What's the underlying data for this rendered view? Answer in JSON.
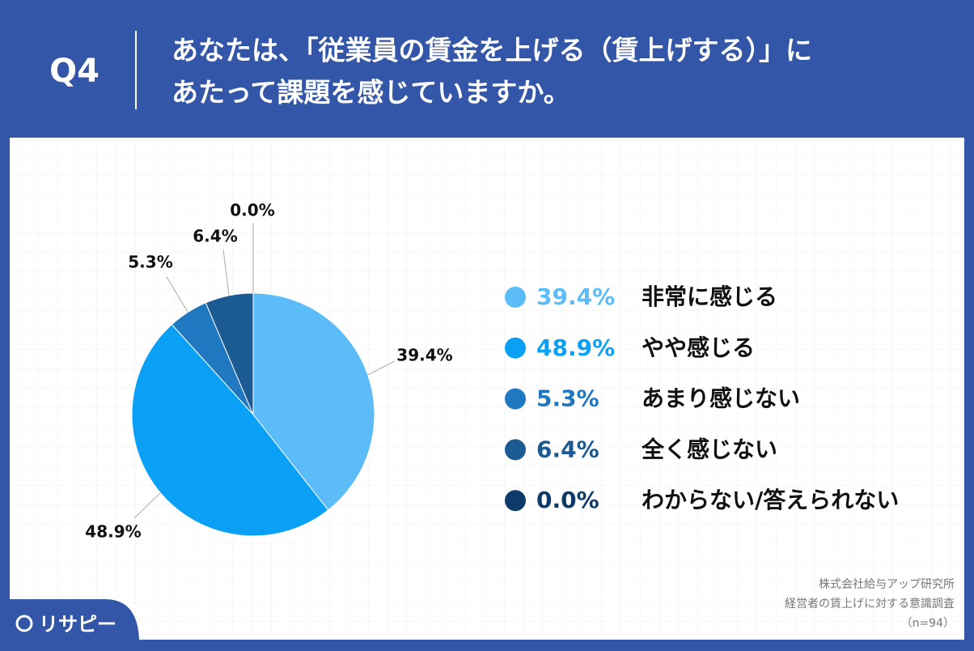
{
  "header": {
    "label": "Q4",
    "question": [
      "あなたは、「従業員の賃金を上げる（賃上げする）」に",
      "あたって課題を感じていますか。"
    ]
  },
  "chart_data": {
    "type": "pie",
    "categories": [
      "非常に感じる",
      "やや感じる",
      "あまり感じない",
      "全く感じない",
      "わからない/答えられない"
    ],
    "values": [
      39.4,
      48.9,
      5.3,
      6.4,
      0.0
    ],
    "value_labels": [
      "39.4%",
      "48.9%",
      "5.3%",
      "6.4%",
      "0.0%"
    ],
    "colors": [
      "#5bbcf8",
      "#0aa0f5",
      "#1f78c0",
      "#1b5a93",
      "#0e3a6a"
    ]
  },
  "source": [
    "株式会社給与アップ研究所",
    "経営者の賃上げに対する意識調査",
    "（n=94）"
  ],
  "logo": "リサピー"
}
